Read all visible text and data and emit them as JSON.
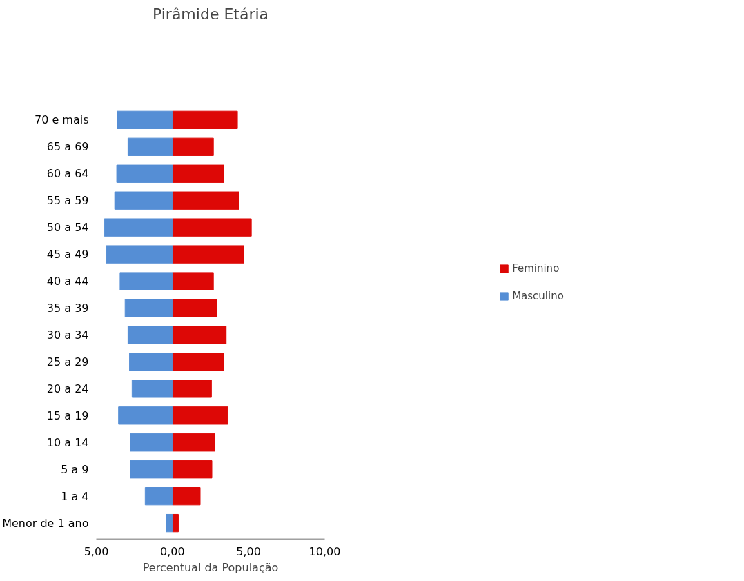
{
  "chart_data": {
    "type": "bar",
    "orientation": "horizontal",
    "stacked": true,
    "title": "Pirâmide Etária",
    "xlabel": "Percentual da População",
    "categories": [
      "70 e mais",
      "65 a 69",
      "60 a 64",
      "55 a 59",
      "50 a 54",
      "45 a 49",
      "40 a 44",
      "35 a 39",
      "30 a 34",
      "25 a 29",
      "20 a 24",
      "15 a 19",
      "10 a 14",
      "5 a 9",
      "1 a 4",
      "Menor de 1 ano"
    ],
    "series": [
      {
        "name": "Feminino",
        "color": "#dd0806",
        "values": [
          4.27,
          2.69,
          3.37,
          4.37,
          5.18,
          4.69,
          2.69,
          2.91,
          3.53,
          3.37,
          2.56,
          3.63,
          2.79,
          2.59,
          1.82,
          0.39
        ]
      },
      {
        "name": "Masculino",
        "color": "#558ed5",
        "values": [
          -3.63,
          -2.92,
          -3.66,
          -3.79,
          -4.47,
          -4.34,
          -3.44,
          -3.11,
          -2.92,
          -2.82,
          -2.65,
          -3.54,
          -2.76,
          -2.76,
          -1.79,
          -0.4
        ]
      }
    ],
    "xlim": [
      -5,
      10
    ],
    "xticks": [
      {
        "value": -5,
        "label": "5,00"
      },
      {
        "value": 0,
        "label": "0,00"
      },
      {
        "value": 5,
        "label": "5,00"
      },
      {
        "value": 10,
        "label": "10,00"
      }
    ],
    "grid": false,
    "legend": "right"
  }
}
